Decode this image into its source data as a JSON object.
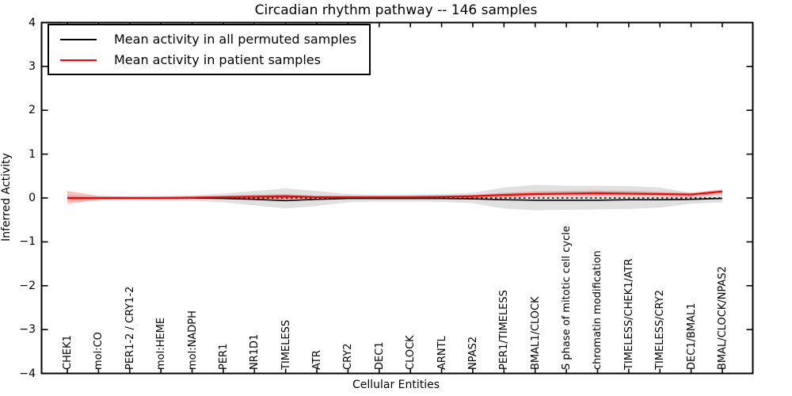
{
  "chart_data": {
    "type": "line",
    "title": "Circadian rhythm pathway -- 146 samples",
    "xlabel": "Cellular Entities",
    "ylabel": "Inferred Activity",
    "ylim": [
      -4,
      4
    ],
    "yticks": [
      -4,
      -3,
      -2,
      -1,
      0,
      1,
      2,
      3,
      4
    ],
    "grid": false,
    "legend_position": "upper left",
    "background_color": "#ffffff",
    "frame_color": "#000000",
    "zero_line": {
      "value": 0,
      "style": "dotted",
      "color": "#000000"
    },
    "categories": [
      "CHEK1",
      "mol:CO",
      "PER1-2 / CRY1-2",
      "mol:HEME",
      "mol:NADPH",
      "PER1",
      "NR1D1",
      "TIMELESS",
      "ATR",
      "CRY2",
      "DEC1",
      "CLOCK",
      "ARNTL",
      "NPAS2",
      "PER1/TIMELESS",
      "BMAL1/CLOCK",
      "S phase of mitotic cell cycle",
      "chromatin modification",
      "TIMELESS/CHEK1/ATR",
      "TIMELESS/CRY2",
      "DEC1/BMAL1",
      "BMAL/CLOCK/NPAS2"
    ],
    "series": [
      {
        "name": "Mean activity in all permuted samples",
        "color": "#000000",
        "values": [
          0.0,
          0.0,
          0.0,
          0.0,
          0.0,
          -0.01,
          -0.03,
          -0.06,
          -0.03,
          -0.01,
          -0.01,
          -0.01,
          -0.01,
          -0.02,
          -0.04,
          -0.05,
          -0.05,
          -0.05,
          -0.04,
          -0.04,
          -0.03,
          -0.01
        ]
      },
      {
        "name": "Mean activity in patient samples",
        "color": "#ff0000",
        "values": [
          0.0,
          0.0,
          0.0,
          0.0,
          0.01,
          0.02,
          0.03,
          0.04,
          0.02,
          0.02,
          0.02,
          0.02,
          0.03,
          0.04,
          0.07,
          0.09,
          0.1,
          0.11,
          0.1,
          0.09,
          0.08,
          0.15
        ]
      }
    ],
    "bands": [
      {
        "name": "permuted samples envelope",
        "color": "#999999",
        "opacity": 0.3,
        "upper": [
          0.06,
          0.04,
          0.04,
          0.05,
          0.06,
          0.1,
          0.16,
          0.22,
          0.16,
          0.09,
          0.07,
          0.08,
          0.09,
          0.12,
          0.24,
          0.3,
          0.28,
          0.28,
          0.27,
          0.24,
          0.12,
          0.1
        ],
        "lower": [
          -0.06,
          -0.04,
          -0.04,
          -0.05,
          -0.06,
          -0.1,
          -0.17,
          -0.24,
          -0.18,
          -0.1,
          -0.08,
          -0.08,
          -0.09,
          -0.12,
          -0.24,
          -0.28,
          -0.27,
          -0.26,
          -0.25,
          -0.22,
          -0.13,
          -0.1
        ]
      },
      {
        "name": "patient samples envelope",
        "color": "#ff4444",
        "opacity": 0.35,
        "upper": [
          0.16,
          0.05,
          0.03,
          0.03,
          0.03,
          0.05,
          0.08,
          0.09,
          0.05,
          0.04,
          0.04,
          0.05,
          0.05,
          0.07,
          0.12,
          0.15,
          0.16,
          0.17,
          0.16,
          0.14,
          0.12,
          0.2
        ],
        "lower": [
          -0.13,
          -0.04,
          -0.02,
          -0.02,
          -0.01,
          -0.01,
          -0.02,
          -0.02,
          -0.01,
          0.0,
          0.0,
          0.0,
          0.0,
          0.01,
          0.02,
          0.04,
          0.05,
          0.05,
          0.05,
          0.04,
          0.03,
          0.09
        ]
      }
    ]
  }
}
